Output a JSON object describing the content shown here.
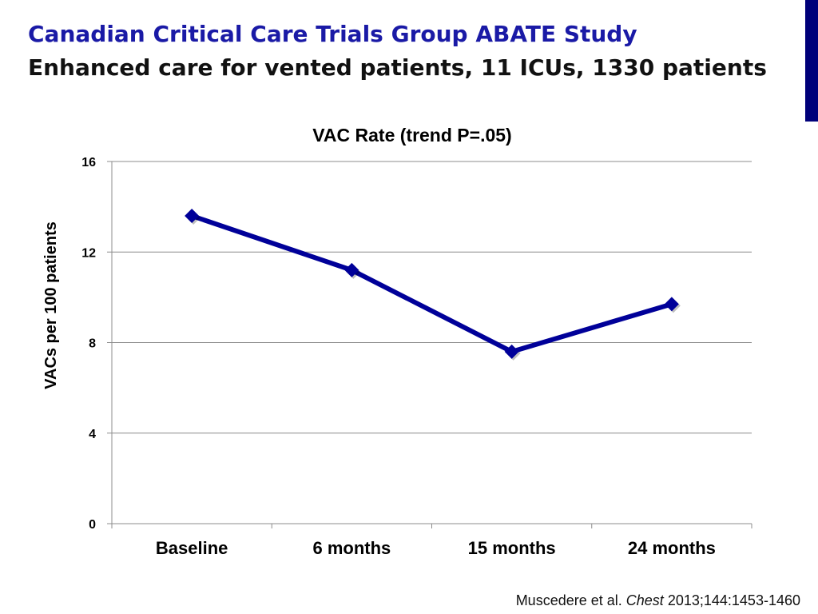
{
  "slide": {
    "title_line1": "Canadian Critical Care Trials Group ABATE Study",
    "title_line2": "Enhanced care for vented patients, 11 ICUs, 1330 patients",
    "citation": {
      "authors": "Muscedere et al.",
      "journal": "Chest",
      "details": "2013;144:1453-1460"
    },
    "accent_color": "#00007a"
  },
  "chart_data": {
    "type": "line",
    "title": "VAC Rate (trend P=.05)",
    "xlabel": "",
    "ylabel": "VACs per 100 patients",
    "categories": [
      "Baseline",
      "6 months",
      "15 months",
      "24 months"
    ],
    "series": [
      {
        "values": [
          13.6,
          11.2,
          7.6,
          9.7
        ],
        "color": "#000099"
      }
    ],
    "ylim": [
      0,
      16
    ],
    "yticks": [
      0,
      4,
      8,
      12,
      16
    ],
    "grid": true,
    "marker": "diamond"
  }
}
